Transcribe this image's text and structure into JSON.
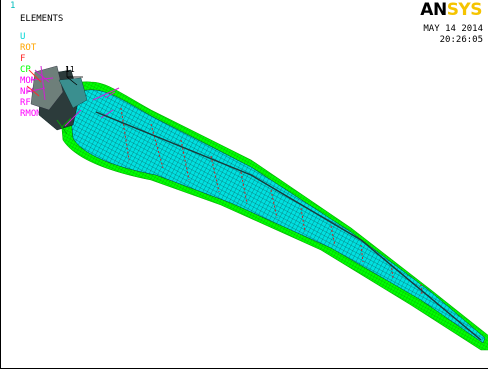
{
  "window": {
    "number": "1",
    "plot_type": "ELEMENTS",
    "date": "MAY 14 2014",
    "time": "20:26:05"
  },
  "logo": {
    "an": "AN",
    "sys": "SYS"
  },
  "legend": [
    {
      "label": "U",
      "color": "#00d5d5"
    },
    {
      "label": "ROT",
      "color": "#ffa500"
    },
    {
      "label": "F",
      "color": "#ff2a2a"
    },
    {
      "label": "CP",
      "color": "#00ff00"
    },
    {
      "label": "MOME",
      "color": "#ff00ff"
    },
    {
      "label": "NFOR",
      "color": "#ff00ff"
    },
    {
      "label": "RF",
      "color": "#ff00ff"
    },
    {
      "label": "RMOM",
      "color": "#ff00ff"
    }
  ],
  "labels": {
    "node_number": "11"
  },
  "colors": {
    "mesh_fill": "#00e0e0",
    "mesh_line": "#103030",
    "shell": "#00ff00",
    "force_arrow": "#d020d0",
    "section": "#cc2222"
  }
}
